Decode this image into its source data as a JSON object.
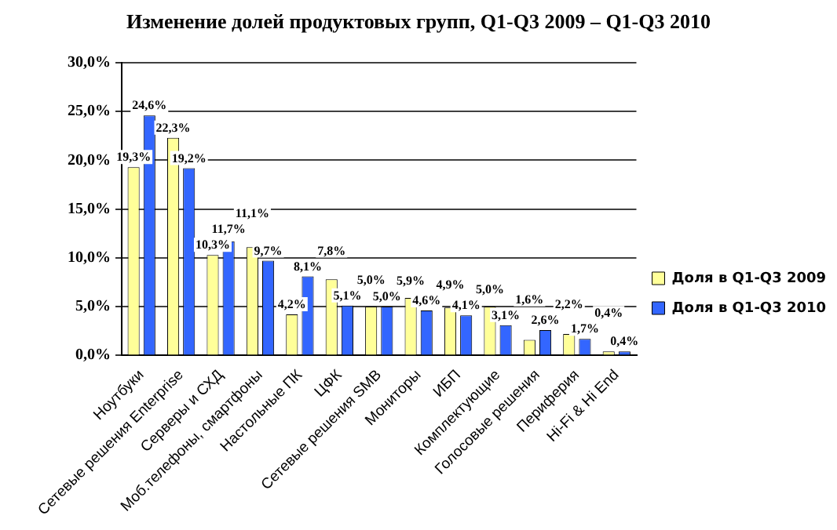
{
  "chart_data": {
    "type": "bar",
    "title": "Изменение долей продуктовых групп, Q1-Q3 2009 – Q1-Q3 2010",
    "categories": [
      "Ноутбуки",
      "Сетевые решения Enterprise",
      "Серверы и СХД",
      "Моб.телефоны, смартфоны",
      "Настольные ПК",
      "ЦФК",
      "Сетевые решения SMB",
      "Мониторы",
      "ИБП",
      "Комплектующие",
      "Голосовые решения",
      "Периферия",
      "Hi-Fi & Hi End"
    ],
    "series": [
      {
        "name": "Доля в Q1-Q3 2009",
        "color": "#ffff99",
        "values": [
          19.3,
          22.3,
          10.3,
          11.1,
          4.2,
          7.8,
          5.0,
          5.9,
          4.9,
          5.0,
          1.6,
          2.2,
          0.4
        ],
        "value_labels": [
          "19,3%",
          "22,3%",
          "10,3%",
          "11,1%",
          "4,2%",
          "7,8%",
          "5,0%",
          "5,9%",
          "4,9%",
          "5,0%",
          "1,6%",
          "2,2%",
          "0,4%"
        ]
      },
      {
        "name": "Доля в Q1-Q3 2010",
        "color": "#3366ff",
        "values": [
          24.6,
          19.2,
          11.7,
          9.7,
          8.1,
          5.1,
          5.0,
          4.6,
          4.1,
          3.1,
          2.6,
          1.7,
          0.4
        ],
        "value_labels": [
          "24,6%",
          "19,2%",
          "11,7%",
          "9,7%",
          "8,1%",
          "5,1%",
          "5,0%",
          "4,6%",
          "4,1%",
          "3,1%",
          "2,6%",
          "1,7%",
          "0,4%"
        ]
      }
    ],
    "ylim": [
      0,
      30
    ],
    "yticks": [
      {
        "value": 0,
        "label": "0,0%"
      },
      {
        "value": 5,
        "label": "5,0%"
      },
      {
        "value": 10,
        "label": "10,0%"
      },
      {
        "value": 15,
        "label": "15,0%"
      },
      {
        "value": 20,
        "label": "20,0%"
      },
      {
        "value": 25,
        "label": "25,0%"
      },
      {
        "value": 30,
        "label": "30,0%"
      }
    ],
    "grid": "y",
    "legend": "right"
  }
}
